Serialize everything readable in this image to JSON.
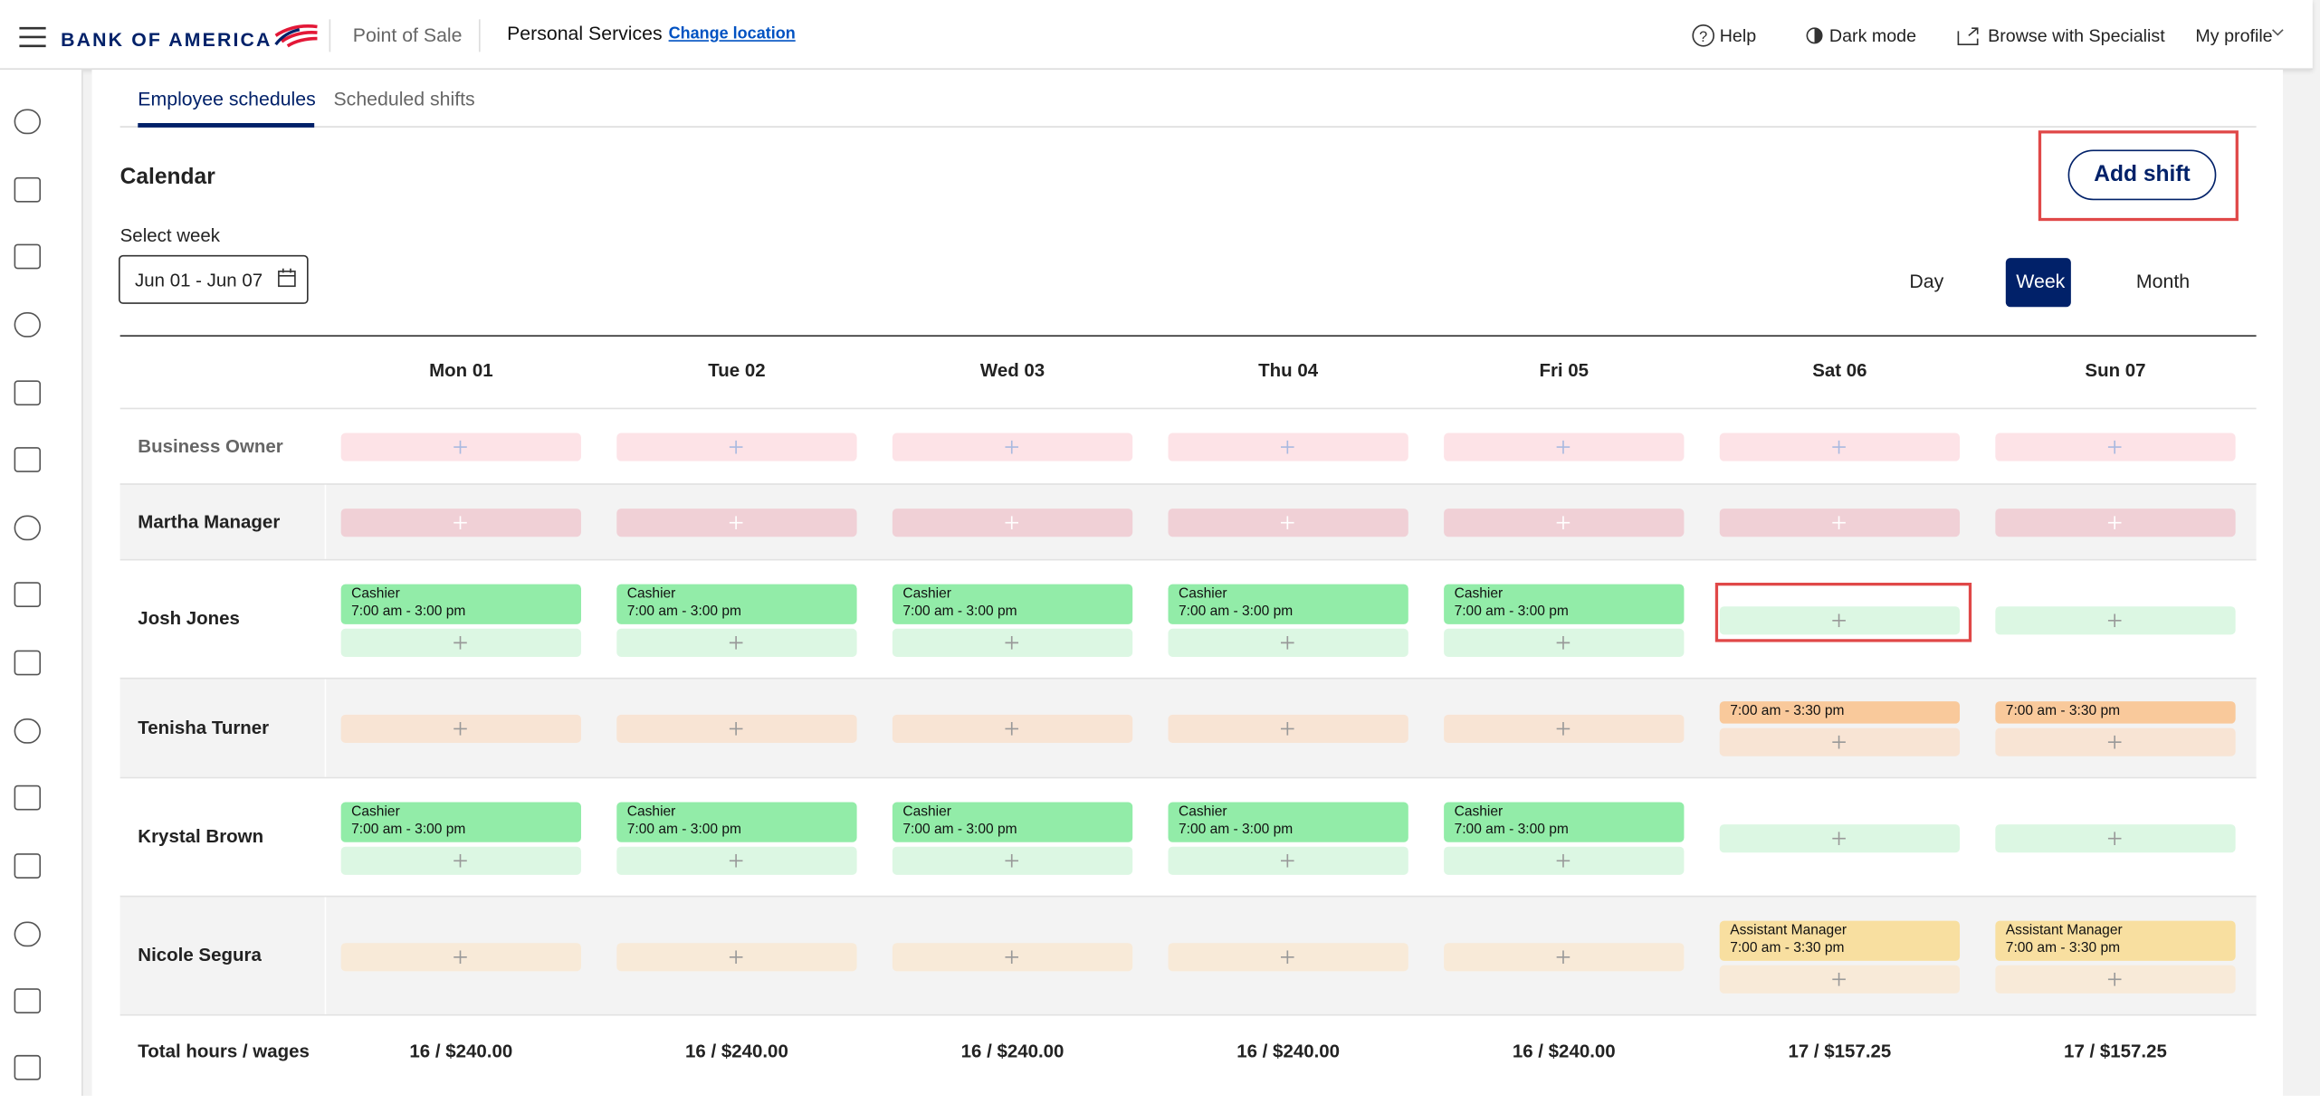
{
  "header": {
    "logo": "BANK OF AMERICA",
    "app": "Point of Sale",
    "location": "Personal Services",
    "change_location": "Change location",
    "nav": [
      "Help",
      "Dark mode",
      "Browse with Specialist",
      "My profile"
    ]
  },
  "tabs": {
    "items": [
      "Employee schedules",
      "Scheduled shifts"
    ],
    "active": 0
  },
  "calendar": {
    "title": "Calendar",
    "add_shift": "Add shift",
    "select_week_label": "Select week",
    "week": "Jun 01 - Jun 07",
    "views": [
      "Day",
      "Week",
      "Month"
    ],
    "active_view": 1
  },
  "days": [
    "Mon 01",
    "Tue 02",
    "Wed 03",
    "Thu 04",
    "Fri 05",
    "Sat 06",
    "Sun 07"
  ],
  "rows": [
    {
      "name": "Business Owner",
      "muted": true,
      "slot_color": "#fde3e7",
      "shift_color": "#f6b8c2",
      "cells": [
        [],
        [],
        [],
        [],
        [],
        [],
        []
      ]
    },
    {
      "name": "Martha Manager",
      "slot_color": "#f0d0d6",
      "shift_color": "#e8aab6",
      "cells": [
        [],
        [],
        [],
        [],
        [],
        [],
        []
      ]
    },
    {
      "name": "Josh Jones",
      "slot_color": "#dcf7e3",
      "shift_color": "#92eca8",
      "cells": [
        [
          {
            "role": "Cashier",
            "time": "7:00 am - 3:00 pm"
          }
        ],
        [
          {
            "role": "Cashier",
            "time": "7:00 am - 3:00 pm"
          }
        ],
        [
          {
            "role": "Cashier",
            "time": "7:00 am - 3:00 pm"
          }
        ],
        [
          {
            "role": "Cashier",
            "time": "7:00 am - 3:00 pm"
          }
        ],
        [
          {
            "role": "Cashier",
            "time": "7:00 am - 3:00 pm"
          }
        ],
        [],
        []
      ]
    },
    {
      "name": "Tenisha Turner",
      "slot_color": "#f8e4d4",
      "shift_color": "#f9c99b",
      "cells": [
        [],
        [],
        [],
        [],
        [],
        [
          {
            "time": "7:00 am - 3:30 pm"
          }
        ],
        [
          {
            "time": "7:00 am - 3:30 pm"
          }
        ]
      ]
    },
    {
      "name": "Krystal Brown",
      "slot_color": "#dcf7e3",
      "shift_color": "#92eca8",
      "cells": [
        [
          {
            "role": "Cashier",
            "time": "7:00 am - 3:00 pm"
          }
        ],
        [
          {
            "role": "Cashier",
            "time": "7:00 am - 3:00 pm"
          }
        ],
        [
          {
            "role": "Cashier",
            "time": "7:00 am - 3:00 pm"
          }
        ],
        [
          {
            "role": "Cashier",
            "time": "7:00 am - 3:00 pm"
          }
        ],
        [
          {
            "role": "Cashier",
            "time": "7:00 am - 3:00 pm"
          }
        ],
        [],
        []
      ]
    },
    {
      "name": "Nicole Segura",
      "slot_color": "#f8ead8",
      "shift_color": "#f8dfa0",
      "cells": [
        [],
        [],
        [],
        [],
        [],
        [
          {
            "role": "Assistant Manager",
            "time": "7:00 am - 3:30 pm"
          }
        ],
        [
          {
            "role": "Assistant Manager",
            "time": "7:00 am - 3:30 pm"
          }
        ]
      ]
    }
  ],
  "totals": {
    "label": "Total hours / wages",
    "values": [
      "16 / $240.00",
      "16 / $240.00",
      "16 / $240.00",
      "16 / $240.00",
      "16 / $240.00",
      "17 / $157.25",
      "17 / $157.25"
    ]
  }
}
